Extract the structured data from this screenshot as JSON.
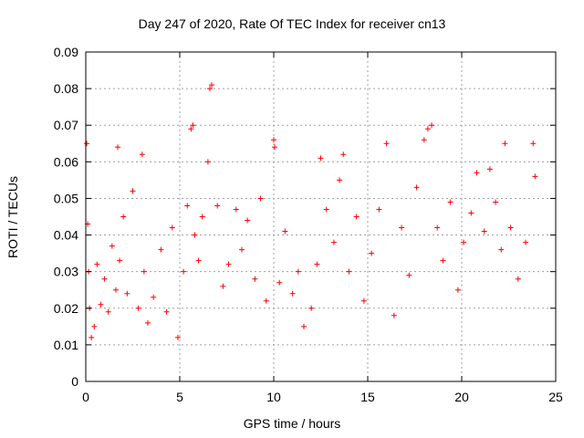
{
  "chart_data": {
    "type": "scatter",
    "title": "Day 247 of 2020, Rate Of TEC Index for receiver cn13",
    "xlabel": "GPS time / hours",
    "ylabel": "ROTI / TECUs",
    "xlim": [
      0,
      25
    ],
    "ylim": [
      0,
      0.09
    ],
    "xticks": [
      "0",
      "5",
      "10",
      "15",
      "20",
      "25"
    ],
    "yticks": [
      "0",
      "0.01",
      "0.02",
      "0.03",
      "0.04",
      "0.05",
      "0.06",
      "0.07",
      "0.08",
      "0.09"
    ],
    "grid": true,
    "marker": "+",
    "color": "#ff0000",
    "series": [
      {
        "x": [
          0.05,
          0.1,
          0.15,
          0.2,
          0.3,
          0.45,
          0.6,
          0.8,
          1.0,
          1.2,
          1.4,
          1.6,
          1.7,
          1.8,
          2.0,
          2.2,
          2.5,
          2.8,
          3.0,
          3.1,
          3.3,
          3.6,
          4.0,
          4.3,
          4.6,
          4.9,
          5.2,
          5.4,
          5.6,
          5.7,
          5.8,
          6.0,
          6.2,
          6.5,
          6.6,
          6.7,
          7.0,
          7.3,
          7.6,
          8.0,
          8.3,
          8.6,
          9.0,
          9.3,
          9.6,
          10.0,
          10.05,
          10.3,
          10.6,
          11.0,
          11.3,
          11.6,
          12.0,
          12.3,
          12.5,
          12.8,
          13.2,
          13.5,
          13.7,
          14.0,
          14.4,
          14.8,
          15.2,
          15.6,
          16.0,
          16.4,
          16.8,
          17.2,
          17.6,
          18.0,
          18.2,
          18.4,
          18.7,
          19.0,
          19.4,
          19.8,
          20.1,
          20.5,
          20.8,
          21.2,
          21.5,
          21.8,
          22.1,
          22.3,
          22.6,
          23.0,
          23.4,
          23.8,
          23.9
        ],
        "y": [
          0.065,
          0.043,
          0.03,
          0.02,
          0.012,
          0.015,
          0.032,
          0.021,
          0.028,
          0.019,
          0.037,
          0.025,
          0.064,
          0.033,
          0.045,
          0.024,
          0.052,
          0.02,
          0.062,
          0.03,
          0.016,
          0.023,
          0.036,
          0.019,
          0.042,
          0.012,
          0.03,
          0.048,
          0.069,
          0.07,
          0.04,
          0.033,
          0.045,
          0.06,
          0.08,
          0.081,
          0.048,
          0.026,
          0.032,
          0.047,
          0.036,
          0.044,
          0.028,
          0.05,
          0.022,
          0.066,
          0.064,
          0.027,
          0.041,
          0.024,
          0.03,
          0.015,
          0.02,
          0.032,
          0.061,
          0.047,
          0.038,
          0.055,
          0.062,
          0.03,
          0.045,
          0.022,
          0.035,
          0.047,
          0.065,
          0.018,
          0.042,
          0.029,
          0.053,
          0.066,
          0.069,
          0.07,
          0.042,
          0.033,
          0.049,
          0.025,
          0.038,
          0.046,
          0.057,
          0.041,
          0.058,
          0.049,
          0.036,
          0.065,
          0.042,
          0.028,
          0.038,
          0.065,
          0.056
        ]
      }
    ]
  }
}
